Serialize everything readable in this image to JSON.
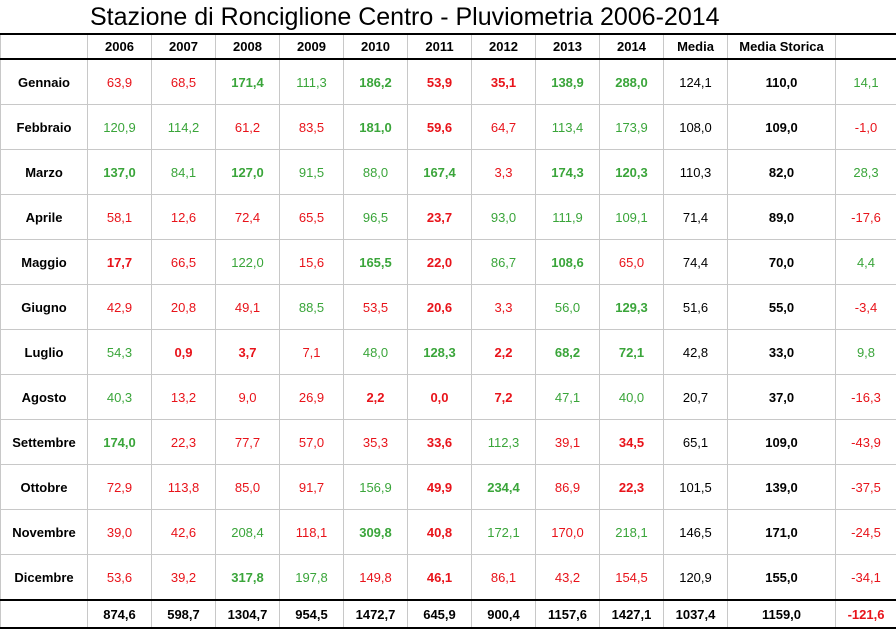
{
  "title": "Stazione di Ronciglione Centro - Pluviometria 2006-2014",
  "headers": [
    "",
    "2006",
    "2007",
    "2008",
    "2009",
    "2010",
    "2011",
    "2012",
    "2013",
    "2014",
    "Media",
    "Media Storica",
    ""
  ],
  "colors": {
    "red": "#e8131a",
    "green": "#3aa53a"
  },
  "rows": [
    {
      "month": "Gennaio",
      "values": [
        {
          "v": "63,9",
          "c": "red",
          "b": false
        },
        {
          "v": "68,5",
          "c": "red",
          "b": false
        },
        {
          "v": "171,4",
          "c": "green",
          "b": true
        },
        {
          "v": "111,3",
          "c": "green",
          "b": false
        },
        {
          "v": "186,2",
          "c": "green",
          "b": true
        },
        {
          "v": "53,9",
          "c": "red",
          "b": true
        },
        {
          "v": "35,1",
          "c": "red",
          "b": true
        },
        {
          "v": "138,9",
          "c": "green",
          "b": true
        },
        {
          "v": "288,0",
          "c": "green",
          "b": true
        }
      ],
      "media": "124,1",
      "storica": "110,0",
      "diff": {
        "v": "14,1",
        "c": "green"
      }
    },
    {
      "month": "Febbraio",
      "values": [
        {
          "v": "120,9",
          "c": "green",
          "b": false
        },
        {
          "v": "114,2",
          "c": "green",
          "b": false
        },
        {
          "v": "61,2",
          "c": "red",
          "b": false
        },
        {
          "v": "83,5",
          "c": "red",
          "b": false
        },
        {
          "v": "181,0",
          "c": "green",
          "b": true
        },
        {
          "v": "59,6",
          "c": "red",
          "b": true
        },
        {
          "v": "64,7",
          "c": "red",
          "b": false
        },
        {
          "v": "113,4",
          "c": "green",
          "b": false
        },
        {
          "v": "173,9",
          "c": "green",
          "b": false
        }
      ],
      "media": "108,0",
      "storica": "109,0",
      "diff": {
        "v": "-1,0",
        "c": "red"
      }
    },
    {
      "month": "Marzo",
      "values": [
        {
          "v": "137,0",
          "c": "green",
          "b": true
        },
        {
          "v": "84,1",
          "c": "green",
          "b": false
        },
        {
          "v": "127,0",
          "c": "green",
          "b": true
        },
        {
          "v": "91,5",
          "c": "green",
          "b": false
        },
        {
          "v": "88,0",
          "c": "green",
          "b": false
        },
        {
          "v": "167,4",
          "c": "green",
          "b": true
        },
        {
          "v": "3,3",
          "c": "red",
          "b": false
        },
        {
          "v": "174,3",
          "c": "green",
          "b": true
        },
        {
          "v": "120,3",
          "c": "green",
          "b": true
        }
      ],
      "media": "110,3",
      "storica": "82,0",
      "diff": {
        "v": "28,3",
        "c": "green"
      }
    },
    {
      "month": "Aprile",
      "values": [
        {
          "v": "58,1",
          "c": "red",
          "b": false
        },
        {
          "v": "12,6",
          "c": "red",
          "b": false
        },
        {
          "v": "72,4",
          "c": "red",
          "b": false
        },
        {
          "v": "65,5",
          "c": "red",
          "b": false
        },
        {
          "v": "96,5",
          "c": "green",
          "b": false
        },
        {
          "v": "23,7",
          "c": "red",
          "b": true
        },
        {
          "v": "93,0",
          "c": "green",
          "b": false
        },
        {
          "v": "111,9",
          "c": "green",
          "b": false
        },
        {
          "v": "109,1",
          "c": "green",
          "b": false
        }
      ],
      "media": "71,4",
      "storica": "89,0",
      "diff": {
        "v": "-17,6",
        "c": "red"
      }
    },
    {
      "month": "Maggio",
      "values": [
        {
          "v": "17,7",
          "c": "red",
          "b": true
        },
        {
          "v": "66,5",
          "c": "red",
          "b": false
        },
        {
          "v": "122,0",
          "c": "green",
          "b": false
        },
        {
          "v": "15,6",
          "c": "red",
          "b": false
        },
        {
          "v": "165,5",
          "c": "green",
          "b": true
        },
        {
          "v": "22,0",
          "c": "red",
          "b": true
        },
        {
          "v": "86,7",
          "c": "green",
          "b": false
        },
        {
          "v": "108,6",
          "c": "green",
          "b": true
        },
        {
          "v": "65,0",
          "c": "red",
          "b": false
        }
      ],
      "media": "74,4",
      "storica": "70,0",
      "diff": {
        "v": "4,4",
        "c": "green"
      }
    },
    {
      "month": "Giugno",
      "values": [
        {
          "v": "42,9",
          "c": "red",
          "b": false
        },
        {
          "v": "20,8",
          "c": "red",
          "b": false
        },
        {
          "v": "49,1",
          "c": "red",
          "b": false
        },
        {
          "v": "88,5",
          "c": "green",
          "b": false
        },
        {
          "v": "53,5",
          "c": "red",
          "b": false
        },
        {
          "v": "20,6",
          "c": "red",
          "b": true
        },
        {
          "v": "3,3",
          "c": "red",
          "b": false
        },
        {
          "v": "56,0",
          "c": "green",
          "b": false
        },
        {
          "v": "129,3",
          "c": "green",
          "b": true
        }
      ],
      "media": "51,6",
      "storica": "55,0",
      "diff": {
        "v": "-3,4",
        "c": "red"
      }
    },
    {
      "month": "Luglio",
      "values": [
        {
          "v": "54,3",
          "c": "green",
          "b": false
        },
        {
          "v": "0,9",
          "c": "red",
          "b": true
        },
        {
          "v": "3,7",
          "c": "red",
          "b": true
        },
        {
          "v": "7,1",
          "c": "red",
          "b": false
        },
        {
          "v": "48,0",
          "c": "green",
          "b": false
        },
        {
          "v": "128,3",
          "c": "green",
          "b": true
        },
        {
          "v": "2,2",
          "c": "red",
          "b": true
        },
        {
          "v": "68,2",
          "c": "green",
          "b": true
        },
        {
          "v": "72,1",
          "c": "green",
          "b": true
        }
      ],
      "media": "42,8",
      "storica": "33,0",
      "diff": {
        "v": "9,8",
        "c": "green"
      }
    },
    {
      "month": "Agosto",
      "values": [
        {
          "v": "40,3",
          "c": "green",
          "b": false
        },
        {
          "v": "13,2",
          "c": "red",
          "b": false
        },
        {
          "v": "9,0",
          "c": "red",
          "b": false
        },
        {
          "v": "26,9",
          "c": "red",
          "b": false
        },
        {
          "v": "2,2",
          "c": "red",
          "b": true
        },
        {
          "v": "0,0",
          "c": "red",
          "b": true
        },
        {
          "v": "7,2",
          "c": "red",
          "b": true
        },
        {
          "v": "47,1",
          "c": "green",
          "b": false
        },
        {
          "v": "40,0",
          "c": "green",
          "b": false
        }
      ],
      "media": "20,7",
      "storica": "37,0",
      "diff": {
        "v": "-16,3",
        "c": "red"
      }
    },
    {
      "month": "Settembre",
      "values": [
        {
          "v": "174,0",
          "c": "green",
          "b": true
        },
        {
          "v": "22,3",
          "c": "red",
          "b": false
        },
        {
          "v": "77,7",
          "c": "red",
          "b": false
        },
        {
          "v": "57,0",
          "c": "red",
          "b": false
        },
        {
          "v": "35,3",
          "c": "red",
          "b": false
        },
        {
          "v": "33,6",
          "c": "red",
          "b": true
        },
        {
          "v": "112,3",
          "c": "green",
          "b": false
        },
        {
          "v": "39,1",
          "c": "red",
          "b": false
        },
        {
          "v": "34,5",
          "c": "red",
          "b": true
        }
      ],
      "media": "65,1",
      "storica": "109,0",
      "diff": {
        "v": "-43,9",
        "c": "red"
      }
    },
    {
      "month": "Ottobre",
      "values": [
        {
          "v": "72,9",
          "c": "red",
          "b": false
        },
        {
          "v": "113,8",
          "c": "red",
          "b": false
        },
        {
          "v": "85,0",
          "c": "red",
          "b": false
        },
        {
          "v": "91,7",
          "c": "red",
          "b": false
        },
        {
          "v": "156,9",
          "c": "green",
          "b": false
        },
        {
          "v": "49,9",
          "c": "red",
          "b": true
        },
        {
          "v": "234,4",
          "c": "green",
          "b": true
        },
        {
          "v": "86,9",
          "c": "red",
          "b": false
        },
        {
          "v": "22,3",
          "c": "red",
          "b": true
        }
      ],
      "media": "101,5",
      "storica": "139,0",
      "diff": {
        "v": "-37,5",
        "c": "red"
      }
    },
    {
      "month": "Novembre",
      "values": [
        {
          "v": "39,0",
          "c": "red",
          "b": false
        },
        {
          "v": "42,6",
          "c": "red",
          "b": false
        },
        {
          "v": "208,4",
          "c": "green",
          "b": false
        },
        {
          "v": "118,1",
          "c": "red",
          "b": false
        },
        {
          "v": "309,8",
          "c": "green",
          "b": true
        },
        {
          "v": "40,8",
          "c": "red",
          "b": true
        },
        {
          "v": "172,1",
          "c": "green",
          "b": false
        },
        {
          "v": "170,0",
          "c": "red",
          "b": false
        },
        {
          "v": "218,1",
          "c": "green",
          "b": false
        }
      ],
      "media": "146,5",
      "storica": "171,0",
      "diff": {
        "v": "-24,5",
        "c": "red"
      }
    },
    {
      "month": "Dicembre",
      "values": [
        {
          "v": "53,6",
          "c": "red",
          "b": false
        },
        {
          "v": "39,2",
          "c": "red",
          "b": false
        },
        {
          "v": "317,8",
          "c": "green",
          "b": true
        },
        {
          "v": "197,8",
          "c": "green",
          "b": false
        },
        {
          "v": "149,8",
          "c": "red",
          "b": false
        },
        {
          "v": "46,1",
          "c": "red",
          "b": true
        },
        {
          "v": "86,1",
          "c": "red",
          "b": false
        },
        {
          "v": "43,2",
          "c": "red",
          "b": false
        },
        {
          "v": "154,5",
          "c": "red",
          "b": false
        }
      ],
      "media": "120,9",
      "storica": "155,0",
      "diff": {
        "v": "-34,1",
        "c": "red"
      }
    }
  ],
  "totals": {
    "values": [
      "874,6",
      "598,7",
      "1304,7",
      "954,5",
      "1472,7",
      "645,9",
      "900,4",
      "1157,6",
      "1427,1"
    ],
    "media": "1037,4",
    "storica": "1159,0",
    "diff": "-121,6"
  }
}
